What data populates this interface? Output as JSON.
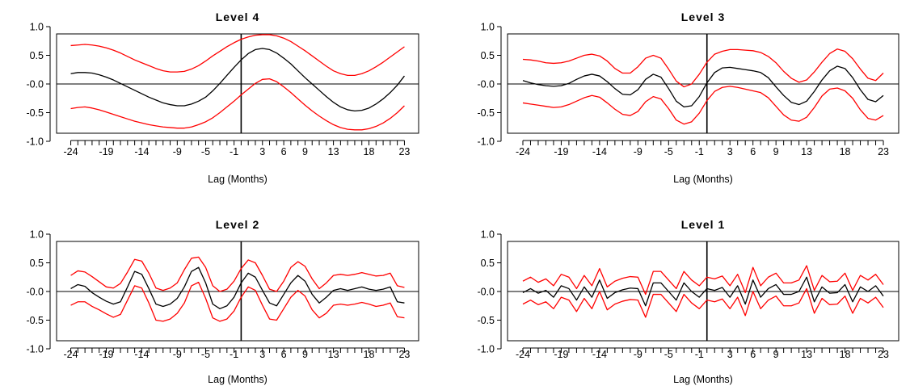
{
  "figure": {
    "xlabel": "Lag (Months)"
  },
  "colors": {
    "ccf": "#000000",
    "bounds": "#ff0000",
    "axes": "#000000"
  },
  "chart_data": [
    {
      "type": "line",
      "title": "Level 4",
      "xlabel": "Lag (Months)",
      "ylabel": "",
      "xlim": [
        -26,
        25
      ],
      "ylim": [
        -1.0,
        1.0
      ],
      "x_ticks": [
        -24,
        -19,
        -14,
        -9,
        -5,
        -1,
        3,
        6,
        9,
        13,
        18,
        23
      ],
      "x_ticks_labels": [
        "-24",
        "-19",
        "-14",
        "-9",
        "-5",
        "-1",
        "3",
        "6",
        "9",
        "13",
        "18",
        "23"
      ],
      "y_ticks": [
        -1.0,
        -0.5,
        0.0,
        0.5,
        1.0
      ],
      "y_ticks_labels": [
        "-1.0",
        "-0.5",
        "-0.0",
        "0.5",
        "1.0"
      ],
      "x": [
        -24,
        -23,
        -22,
        -21,
        -20,
        -19,
        -18,
        -17,
        -16,
        -15,
        -14,
        -13,
        -12,
        -11,
        -10,
        -9,
        -8,
        -7,
        -6,
        -5,
        -4,
        -3,
        -2,
        -1,
        0,
        1,
        2,
        3,
        4,
        5,
        6,
        7,
        8,
        9,
        10,
        11,
        12,
        13,
        14,
        15,
        16,
        17,
        18,
        19,
        20,
        21,
        22,
        23
      ],
      "series": [
        {
          "role": "estimate",
          "values": [
            0.18,
            0.2,
            0.2,
            0.19,
            0.16,
            0.12,
            0.07,
            0.01,
            -0.05,
            -0.11,
            -0.17,
            -0.23,
            -0.28,
            -0.33,
            -0.36,
            -0.38,
            -0.38,
            -0.35,
            -0.3,
            -0.23,
            -0.12,
            0.01,
            0.15,
            0.29,
            0.42,
            0.53,
            0.6,
            0.62,
            0.6,
            0.54,
            0.45,
            0.35,
            0.23,
            0.11,
            0.0,
            -0.11,
            -0.22,
            -0.32,
            -0.4,
            -0.45,
            -0.47,
            -0.46,
            -0.42,
            -0.35,
            -0.26,
            -0.15,
            -0.02,
            0.14
          ]
        },
        {
          "role": "upper",
          "values": [
            0.67,
            0.68,
            0.69,
            0.68,
            0.66,
            0.63,
            0.59,
            0.54,
            0.48,
            0.42,
            0.37,
            0.32,
            0.27,
            0.23,
            0.21,
            0.21,
            0.22,
            0.26,
            0.32,
            0.4,
            0.49,
            0.57,
            0.65,
            0.72,
            0.78,
            0.82,
            0.85,
            0.86,
            0.86,
            0.84,
            0.8,
            0.74,
            0.66,
            0.58,
            0.49,
            0.4,
            0.31,
            0.23,
            0.18,
            0.15,
            0.15,
            0.18,
            0.23,
            0.3,
            0.38,
            0.47,
            0.56,
            0.65
          ]
        },
        {
          "role": "lower",
          "values": [
            -0.43,
            -0.41,
            -0.4,
            -0.42,
            -0.45,
            -0.49,
            -0.53,
            -0.57,
            -0.61,
            -0.65,
            -0.68,
            -0.71,
            -0.73,
            -0.75,
            -0.76,
            -0.77,
            -0.77,
            -0.75,
            -0.71,
            -0.66,
            -0.59,
            -0.5,
            -0.4,
            -0.3,
            -0.19,
            -0.09,
            0.01,
            0.08,
            0.09,
            0.04,
            -0.05,
            -0.15,
            -0.26,
            -0.37,
            -0.47,
            -0.56,
            -0.64,
            -0.71,
            -0.76,
            -0.79,
            -0.8,
            -0.8,
            -0.78,
            -0.74,
            -0.68,
            -0.6,
            -0.5,
            -0.38
          ]
        }
      ]
    },
    {
      "type": "line",
      "title": "Level 3",
      "xlabel": "Lag (Months)",
      "ylabel": "",
      "xlim": [
        -26,
        25
      ],
      "ylim": [
        -1.0,
        1.0
      ],
      "x_ticks": [
        -24,
        -19,
        -14,
        -9,
        -5,
        -1,
        3,
        6,
        9,
        13,
        18,
        23
      ],
      "x_ticks_labels": [
        "-24",
        "-19",
        "-14",
        "-9",
        "-5",
        "-1",
        "3",
        "6",
        "9",
        "13",
        "18",
        "23"
      ],
      "y_ticks": [
        -1.0,
        -0.5,
        0.0,
        0.5,
        1.0
      ],
      "y_ticks_labels": [
        "-1.0",
        "-0.5",
        "-0.0",
        "0.5",
        "1.0"
      ],
      "x": [
        -24,
        -23,
        -22,
        -21,
        -20,
        -19,
        -18,
        -17,
        -16,
        -15,
        -14,
        -13,
        -12,
        -11,
        -10,
        -9,
        -8,
        -7,
        -6,
        -5,
        -4,
        -3,
        -2,
        -1,
        0,
        1,
        2,
        3,
        4,
        5,
        6,
        7,
        8,
        9,
        10,
        11,
        12,
        13,
        14,
        15,
        16,
        17,
        18,
        19,
        20,
        21,
        22,
        23
      ],
      "series": [
        {
          "role": "estimate",
          "values": [
            0.06,
            0.02,
            -0.01,
            -0.03,
            -0.04,
            -0.03,
            0.01,
            0.08,
            0.14,
            0.17,
            0.14,
            0.04,
            -0.08,
            -0.18,
            -0.19,
            -0.1,
            0.08,
            0.17,
            0.12,
            -0.08,
            -0.3,
            -0.4,
            -0.38,
            -0.22,
            0.02,
            0.2,
            0.28,
            0.29,
            0.27,
            0.25,
            0.23,
            0.2,
            0.11,
            -0.05,
            -0.2,
            -0.32,
            -0.36,
            -0.3,
            -0.13,
            0.07,
            0.23,
            0.31,
            0.27,
            0.11,
            -0.1,
            -0.27,
            -0.31,
            -0.2
          ]
        },
        {
          "role": "upper",
          "values": [
            0.43,
            0.42,
            0.4,
            0.37,
            0.36,
            0.37,
            0.4,
            0.45,
            0.5,
            0.52,
            0.49,
            0.4,
            0.27,
            0.19,
            0.19,
            0.3,
            0.45,
            0.5,
            0.45,
            0.26,
            0.05,
            -0.05,
            0.0,
            0.17,
            0.38,
            0.52,
            0.57,
            0.6,
            0.6,
            0.59,
            0.58,
            0.55,
            0.48,
            0.37,
            0.22,
            0.1,
            0.03,
            0.07,
            0.21,
            0.38,
            0.53,
            0.61,
            0.57,
            0.44,
            0.26,
            0.1,
            0.06,
            0.19
          ]
        },
        {
          "role": "lower",
          "values": [
            -0.33,
            -0.35,
            -0.37,
            -0.39,
            -0.41,
            -0.4,
            -0.36,
            -0.3,
            -0.24,
            -0.2,
            -0.23,
            -0.33,
            -0.44,
            -0.53,
            -0.55,
            -0.48,
            -0.31,
            -0.22,
            -0.26,
            -0.43,
            -0.63,
            -0.7,
            -0.66,
            -0.51,
            -0.29,
            -0.13,
            -0.06,
            -0.04,
            -0.06,
            -0.09,
            -0.12,
            -0.15,
            -0.24,
            -0.39,
            -0.54,
            -0.63,
            -0.65,
            -0.58,
            -0.41,
            -0.21,
            -0.09,
            -0.07,
            -0.12,
            -0.25,
            -0.45,
            -0.6,
            -0.63,
            -0.55
          ]
        }
      ]
    },
    {
      "type": "line",
      "title": "Level 2",
      "xlabel": "Lag (Months)",
      "ylabel": "",
      "xlim": [
        -26,
        25
      ],
      "ylim": [
        -1.0,
        1.0
      ],
      "x_ticks": [
        -24,
        -19,
        -14,
        -9,
        -5,
        -1,
        3,
        6,
        9,
        13,
        18,
        23
      ],
      "x_ticks_labels": [
        "-24",
        "-19",
        "-14",
        "-9",
        "-5",
        "-1",
        "3",
        "6",
        "9",
        "13",
        "18",
        "23"
      ],
      "y_ticks": [
        -1.0,
        -0.5,
        0.0,
        0.5,
        1.0
      ],
      "y_ticks_labels": [
        "-1.0",
        "-0.5",
        "-0.0",
        "0.5",
        "1.0"
      ],
      "x": [
        -24,
        -23,
        -22,
        -21,
        -20,
        -19,
        -18,
        -17,
        -16,
        -15,
        -14,
        -13,
        -12,
        -11,
        -10,
        -9,
        -8,
        -7,
        -6,
        -5,
        -4,
        -3,
        -2,
        -1,
        0,
        1,
        2,
        3,
        4,
        5,
        6,
        7,
        8,
        9,
        10,
        11,
        12,
        13,
        14,
        15,
        16,
        17,
        18,
        19,
        20,
        21,
        22,
        23
      ],
      "series": [
        {
          "role": "estimate",
          "values": [
            0.05,
            0.12,
            0.09,
            -0.02,
            -0.1,
            -0.17,
            -0.22,
            -0.18,
            0.08,
            0.35,
            0.3,
            0.05,
            -0.22,
            -0.26,
            -0.22,
            -0.12,
            0.08,
            0.35,
            0.42,
            0.15,
            -0.22,
            -0.3,
            -0.25,
            -0.1,
            0.15,
            0.32,
            0.25,
            0.02,
            -0.2,
            -0.25,
            -0.05,
            0.15,
            0.28,
            0.18,
            -0.05,
            -0.2,
            -0.1,
            0.02,
            0.05,
            0.02,
            0.05,
            0.08,
            0.04,
            0.02,
            0.04,
            0.08,
            -0.18,
            -0.2
          ]
        },
        {
          "role": "upper",
          "values": [
            0.28,
            0.36,
            0.34,
            0.26,
            0.17,
            0.08,
            0.06,
            0.14,
            0.34,
            0.56,
            0.53,
            0.32,
            0.06,
            0.02,
            0.06,
            0.15,
            0.38,
            0.58,
            0.6,
            0.42,
            0.1,
            0.0,
            0.04,
            0.18,
            0.4,
            0.55,
            0.5,
            0.28,
            0.04,
            0.0,
            0.18,
            0.42,
            0.52,
            0.44,
            0.22,
            0.05,
            0.15,
            0.28,
            0.3,
            0.28,
            0.3,
            0.33,
            0.3,
            0.27,
            0.28,
            0.32,
            0.1,
            0.07
          ]
        },
        {
          "role": "lower",
          "values": [
            -0.24,
            -0.18,
            -0.18,
            -0.26,
            -0.32,
            -0.39,
            -0.45,
            -0.4,
            -0.15,
            0.1,
            0.06,
            -0.2,
            -0.5,
            -0.52,
            -0.48,
            -0.38,
            -0.2,
            0.1,
            0.16,
            -0.12,
            -0.46,
            -0.52,
            -0.48,
            -0.34,
            -0.1,
            0.08,
            0.02,
            -0.24,
            -0.48,
            -0.5,
            -0.3,
            -0.1,
            0.02,
            -0.08,
            -0.32,
            -0.46,
            -0.38,
            -0.24,
            -0.22,
            -0.24,
            -0.22,
            -0.19,
            -0.22,
            -0.26,
            -0.24,
            -0.2,
            -0.44,
            -0.46
          ]
        }
      ]
    },
    {
      "type": "line",
      "title": "Level 1",
      "xlabel": "Lag (Months)",
      "ylabel": "",
      "xlim": [
        -26,
        25
      ],
      "ylim": [
        -1.0,
        1.0
      ],
      "x_ticks": [
        -24,
        -19,
        -14,
        -9,
        -5,
        -1,
        3,
        6,
        9,
        13,
        18,
        23
      ],
      "x_ticks_labels": [
        "-24",
        "-19",
        "-14",
        "-9",
        "-5",
        "-1",
        "3",
        "6",
        "9",
        "13",
        "18",
        "23"
      ],
      "y_ticks": [
        -1.0,
        -0.5,
        0.0,
        0.5,
        1.0
      ],
      "y_ticks_labels": [
        "-1.0",
        "-0.5",
        "-0.0",
        "0.5",
        "1.0"
      ],
      "x": [
        -24,
        -23,
        -22,
        -21,
        -20,
        -19,
        -18,
        -17,
        -16,
        -15,
        -14,
        -13,
        -12,
        -11,
        -10,
        -9,
        -8,
        -7,
        -6,
        -5,
        -4,
        -3,
        -2,
        -1,
        0,
        1,
        2,
        3,
        4,
        5,
        6,
        7,
        8,
        9,
        10,
        11,
        12,
        13,
        14,
        15,
        16,
        17,
        18,
        19,
        20,
        21,
        22,
        23
      ],
      "series": [
        {
          "role": "estimate",
          "values": [
            -0.02,
            0.05,
            -0.03,
            0.02,
            -0.1,
            0.1,
            0.05,
            -0.15,
            0.08,
            -0.1,
            0.2,
            -0.12,
            -0.02,
            0.03,
            0.06,
            0.05,
            -0.25,
            0.15,
            0.15,
            0.0,
            -0.15,
            0.15,
            0.0,
            -0.1,
            0.05,
            0.02,
            0.07,
            -0.1,
            0.1,
            -0.22,
            0.2,
            -0.1,
            0.05,
            0.12,
            -0.05,
            -0.05,
            0.0,
            0.25,
            -0.18,
            0.08,
            -0.03,
            -0.02,
            0.12,
            -0.18,
            0.08,
            0.0,
            0.1,
            -0.08
          ]
        },
        {
          "role": "upper",
          "values": [
            0.18,
            0.25,
            0.16,
            0.22,
            0.1,
            0.3,
            0.25,
            0.05,
            0.28,
            0.1,
            0.4,
            0.08,
            0.18,
            0.23,
            0.26,
            0.25,
            -0.05,
            0.35,
            0.35,
            0.2,
            0.05,
            0.35,
            0.2,
            0.1,
            0.25,
            0.22,
            0.27,
            0.1,
            0.3,
            -0.02,
            0.42,
            0.1,
            0.25,
            0.32,
            0.15,
            0.15,
            0.2,
            0.45,
            0.02,
            0.28,
            0.17,
            0.18,
            0.32,
            0.02,
            0.28,
            0.2,
            0.3,
            0.12
          ]
        },
        {
          "role": "lower",
          "values": [
            -0.22,
            -0.15,
            -0.23,
            -0.18,
            -0.3,
            -0.1,
            -0.15,
            -0.35,
            -0.12,
            -0.3,
            0.0,
            -0.32,
            -0.22,
            -0.17,
            -0.14,
            -0.15,
            -0.45,
            -0.05,
            -0.05,
            -0.2,
            -0.35,
            -0.05,
            -0.2,
            -0.3,
            -0.15,
            -0.18,
            -0.13,
            -0.3,
            -0.1,
            -0.42,
            0.0,
            -0.3,
            -0.15,
            -0.08,
            -0.25,
            -0.25,
            -0.2,
            0.05,
            -0.38,
            -0.12,
            -0.23,
            -0.22,
            -0.08,
            -0.38,
            -0.12,
            -0.2,
            -0.1,
            -0.28
          ]
        }
      ]
    }
  ]
}
